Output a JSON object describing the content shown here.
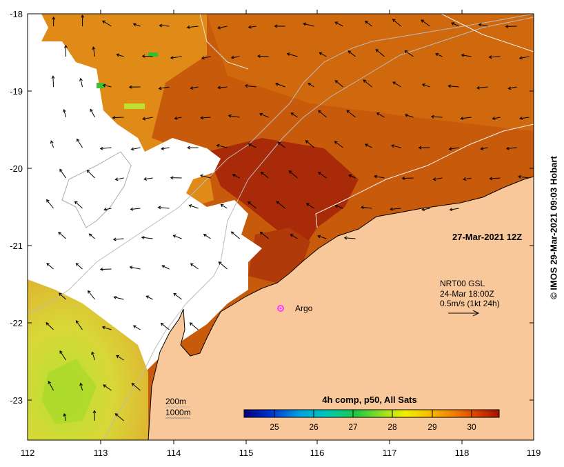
{
  "map": {
    "timestamp": "27-Mar-2021 12Z",
    "credit": "© IMOS 29-Mar-2021 09:03 Hobart",
    "x_ticks": [
      "112",
      "113",
      "114",
      "115",
      "116",
      "117",
      "118",
      "119"
    ],
    "y_ticks": [
      "-18",
      "-19",
      "-20",
      "-21",
      "-22",
      "-23"
    ],
    "argo_label": "Argo",
    "current_note": {
      "line1": "NRT00 GSL",
      "line2": "24-Mar 18:00Z",
      "line3": "0.5m/s (1kt 24h)"
    },
    "depth_legend": {
      "shallow": "200m",
      "deep": "1000m"
    },
    "colorbar": {
      "title": "4h comp, p50, All Sats",
      "labels": [
        "25",
        "26",
        "27",
        "28",
        "29",
        "30"
      ]
    },
    "colors": {
      "land": "#f9c89a",
      "cloud": "#ffffff",
      "warm_sst": "#c8500a",
      "hot_sst": "#a82a08",
      "cool_sst": "#c8d63a",
      "argo": "#ff40ff"
    }
  }
}
